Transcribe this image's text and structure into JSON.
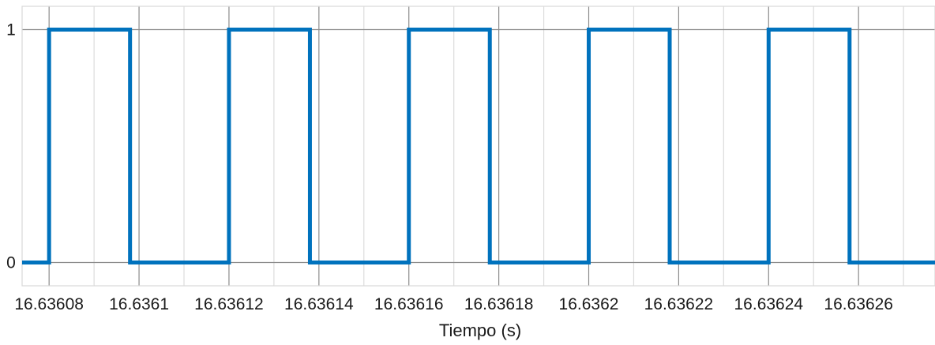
{
  "chart_data": {
    "type": "line",
    "title": "",
    "xlabel": "Tiempo (s)",
    "ylabel": "",
    "x_tick_labels": [
      "16.63608",
      "16.6361",
      "16.63612",
      "16.63614",
      "16.63616",
      "16.63618",
      "16.6362",
      "16.63622",
      "16.63624",
      "16.63626"
    ],
    "x_ticks": [
      16.63608,
      16.6361,
      16.63612,
      16.63614,
      16.63616,
      16.63618,
      16.6362,
      16.63622,
      16.63624,
      16.63626
    ],
    "y_tick_labels": [
      "0",
      "1"
    ],
    "y_ticks": [
      0,
      1
    ],
    "xlim": [
      16.636074,
      16.636277
    ],
    "ylim": [
      -0.1,
      1.1
    ],
    "grid": true,
    "legend": "none",
    "series": [
      {
        "color": "#0072BD",
        "step": true,
        "x": [
          16.636074,
          16.63608,
          16.63608,
          16.636098,
          16.636098,
          16.63612,
          16.63612,
          16.636138,
          16.636138,
          16.63616,
          16.63616,
          16.636178,
          16.636178,
          16.6362,
          16.6362,
          16.636218,
          16.636218,
          16.63624,
          16.63624,
          16.636258,
          16.636258,
          16.636277
        ],
        "y": [
          0,
          0,
          1,
          1,
          0,
          0,
          1,
          1,
          0,
          0,
          1,
          1,
          0,
          0,
          1,
          1,
          0,
          0,
          1,
          1,
          0,
          0
        ]
      }
    ]
  }
}
